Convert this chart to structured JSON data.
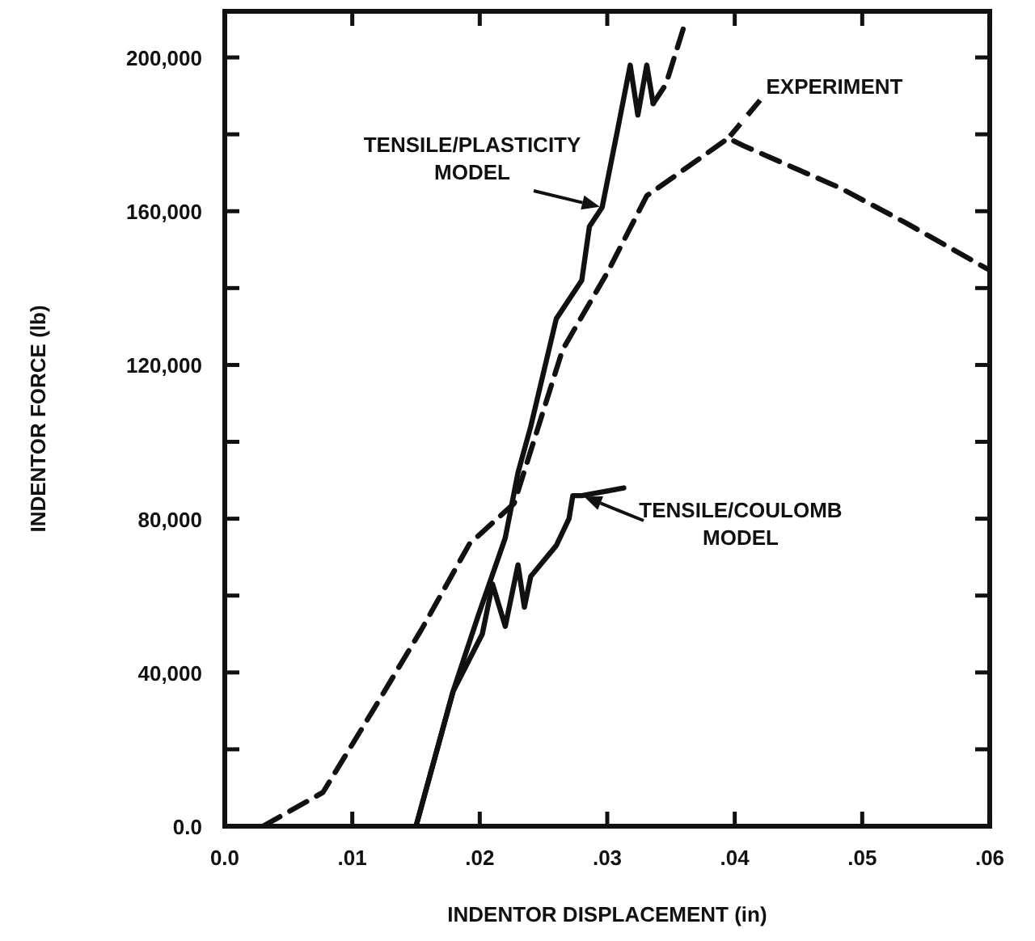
{
  "chart_data": {
    "type": "line",
    "xlabel": "INDENTOR DISPLACEMENT (in)",
    "ylabel": "INDENTOR FORCE (lb)",
    "xlim": [
      0,
      0.06
    ],
    "ylim": [
      0,
      212000
    ],
    "xticks": [
      {
        "value": 0,
        "label": "0.0"
      },
      {
        "value": 0.01,
        "label": ".01"
      },
      {
        "value": 0.02,
        "label": ".02"
      },
      {
        "value": 0.03,
        "label": ".03"
      },
      {
        "value": 0.04,
        "label": ".04"
      },
      {
        "value": 0.05,
        "label": ".05"
      },
      {
        "value": 0.06,
        "label": ".06"
      }
    ],
    "yticks": [
      {
        "value": 0,
        "label": "0.0"
      },
      {
        "value": 20000,
        "label": null
      },
      {
        "value": 40000,
        "label": "40,000"
      },
      {
        "value": 60000,
        "label": null
      },
      {
        "value": 80000,
        "label": "80,000"
      },
      {
        "value": 100000,
        "label": null
      },
      {
        "value": 120000,
        "label": "120,000"
      },
      {
        "value": 140000,
        "label": null
      },
      {
        "value": 160000,
        "label": "160,000"
      },
      {
        "value": 180000,
        "label": null
      },
      {
        "value": 200000,
        "label": "200,000"
      }
    ],
    "grid": false,
    "marker": "none",
    "series": [
      {
        "name": "TENSILE/PLASTICITY MODEL",
        "color": "#111111",
        "line_style": "solid",
        "x": [
          0.015,
          0.0179,
          0.0199,
          0.022,
          0.023,
          0.024,
          0.026,
          0.028,
          0.0286,
          0.0296,
          0.0308,
          0.0318,
          0.0324,
          0.0331,
          0.0336
        ],
        "values": [
          0,
          35000,
          55000,
          75000,
          92000,
          104000,
          132000,
          142000,
          156000,
          161000,
          181000,
          198000,
          185000,
          198000,
          188000
        ]
      },
      {
        "color": "#111111",
        "line_style": "dashed",
        "x": [
          0.0336,
          0.0346,
          0.0362
        ],
        "values": [
          188000,
          193000,
          210000
        ]
      },
      {
        "name": "EXPERIMENT",
        "color": "#111111",
        "line_style": "dashed",
        "x": [
          0.003,
          0.0077,
          0.0116,
          0.0154,
          0.0192,
          0.0227,
          0.0265,
          0.03,
          0.0331,
          0.0395,
          0.0407,
          0.0483,
          0.0534,
          0.0598
        ],
        "values": [
          0,
          8800,
          30000,
          51000,
          73500,
          84000,
          124000,
          144000,
          164000,
          179000,
          177000,
          166000,
          157000,
          145000
        ]
      },
      {
        "name": "TENSILE/COULOMB MODEL",
        "color": "#111111",
        "line_style": "solid",
        "x": [
          0.015,
          0.0179,
          0.0202,
          0.021,
          0.022,
          0.023,
          0.0235,
          0.024,
          0.026,
          0.027,
          0.0273,
          0.028,
          0.0313
        ],
        "values": [
          0,
          35000,
          50000,
          63000,
          52000,
          68000,
          57000,
          65000,
          73000,
          80000,
          86000,
          86000,
          88000
        ]
      }
    ]
  }
}
